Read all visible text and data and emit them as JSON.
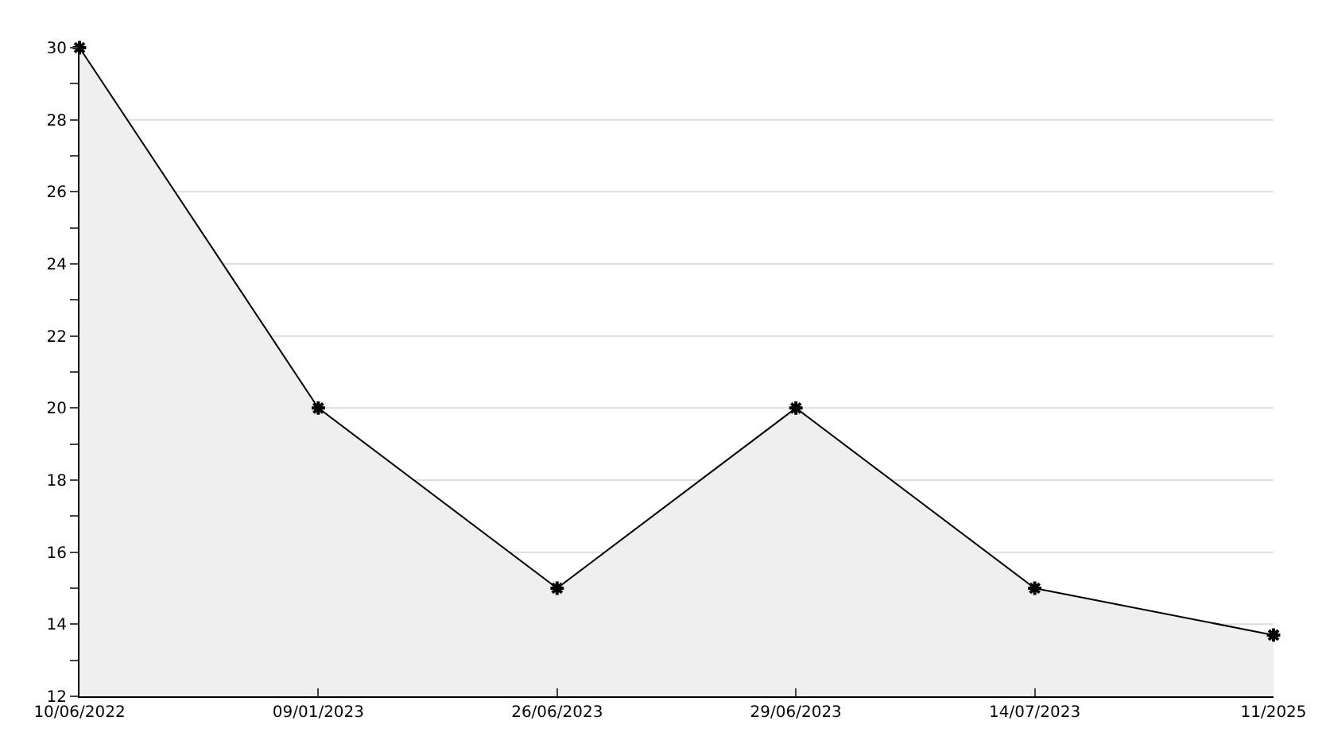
{
  "chart_data": {
    "type": "area",
    "categories": [
      "10/06/2022",
      "09/01/2023",
      "26/06/2023",
      "29/06/2023",
      "14/07/2023",
      "11/2025"
    ],
    "series": [
      {
        "color": "#000000",
        "values": [
          30,
          20,
          15,
          20,
          15,
          13.7
        ]
      }
    ],
    "ylim": [
      12,
      30
    ],
    "yticks": [
      12,
      {
        "value": 13,
        "label": null
      },
      14,
      {
        "value": 15,
        "label": null
      },
      16,
      {
        "value": 17,
        "label": null
      },
      18,
      {
        "value": 19,
        "label": null
      },
      20,
      {
        "value": 21,
        "label": null
      },
      22,
      {
        "value": 23,
        "label": null
      },
      24,
      {
        "value": 25,
        "label": null
      },
      26,
      {
        "value": 27,
        "label": null
      },
      28,
      {
        "value": 29,
        "label": null
      },
      30
    ],
    "grid": "y",
    "marker": "cross",
    "line_style": "solid",
    "legend": false
  }
}
